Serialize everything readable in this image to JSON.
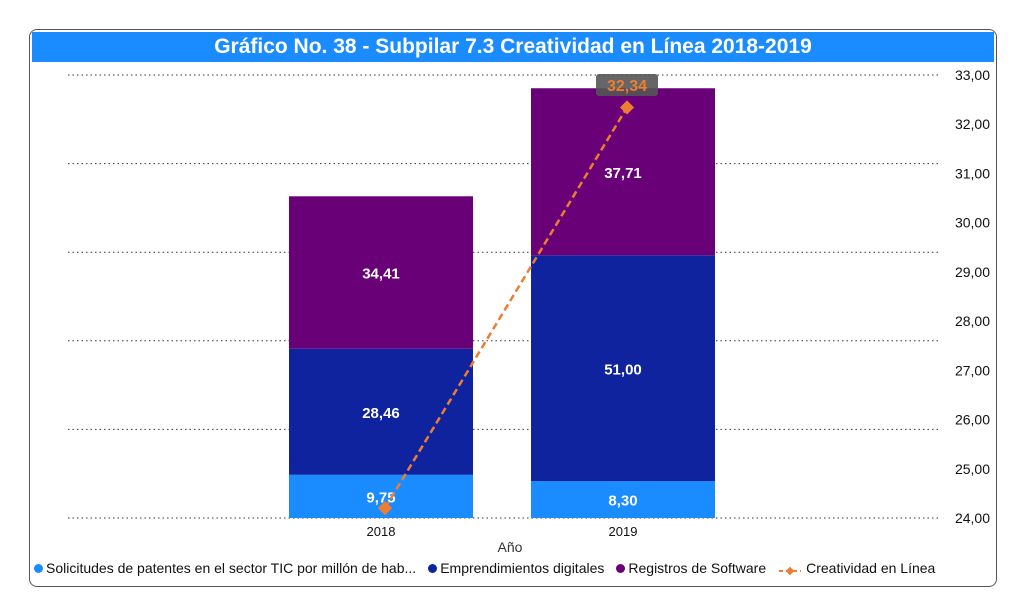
{
  "chart_data": {
    "type": "bar",
    "stacked": true,
    "title": "Gráfico No. 38 - Subpilar 7.3 Creatividad en Línea 2018-2019",
    "xlabel": "Año",
    "ylabel": "",
    "categories": [
      "2018",
      "2019"
    ],
    "series": [
      {
        "name": "Solicitudes de patentes  en el sector TIC por millón de hab...",
        "type": "bar",
        "color": "#1a8cff",
        "values": [
          9.75,
          8.3
        ],
        "labels": [
          "9,75",
          "8,30"
        ]
      },
      {
        "name": "Emprendimientos digitales",
        "type": "bar",
        "color": "#10239e",
        "values": [
          28.46,
          51.0
        ],
        "labels": [
          "28,46",
          "51,00"
        ]
      },
      {
        "name": "Registros de Software",
        "type": "bar",
        "color": "#6a0077",
        "values": [
          34.41,
          37.71
        ],
        "labels": [
          "34,41",
          "37,71"
        ]
      },
      {
        "name": "Creatividad en Línea",
        "type": "line",
        "axis": "secondary",
        "color": "#ed7d31",
        "values": [
          24.2,
          32.34
        ],
        "labels": [
          null,
          "32,34"
        ]
      }
    ],
    "primary_axis": {
      "ylim": [
        0,
        100
      ],
      "gridlines": [
        0,
        20,
        40,
        60,
        80,
        100
      ],
      "visible": false
    },
    "secondary_axis": {
      "ylim": [
        24,
        33
      ],
      "ticks": [
        "24,00",
        "25,00",
        "26,00",
        "27,00",
        "28,00",
        "29,00",
        "30,00",
        "31,00",
        "32,00",
        "33,00"
      ],
      "position": "right"
    },
    "grid": true,
    "legend_position": "bottom"
  },
  "legend": {
    "items": [
      {
        "label": "Solicitudes de patentes  en el sector TIC por millón de hab...",
        "color": "#1a8cff",
        "kind": "dot"
      },
      {
        "label": "Emprendimientos digitales",
        "color": "#10239e",
        "kind": "dot"
      },
      {
        "label": "Registros de Software",
        "color": "#6a0077",
        "kind": "dot"
      },
      {
        "label": "Creatividad en Línea",
        "color": "#ed7d31",
        "kind": "line"
      }
    ]
  }
}
